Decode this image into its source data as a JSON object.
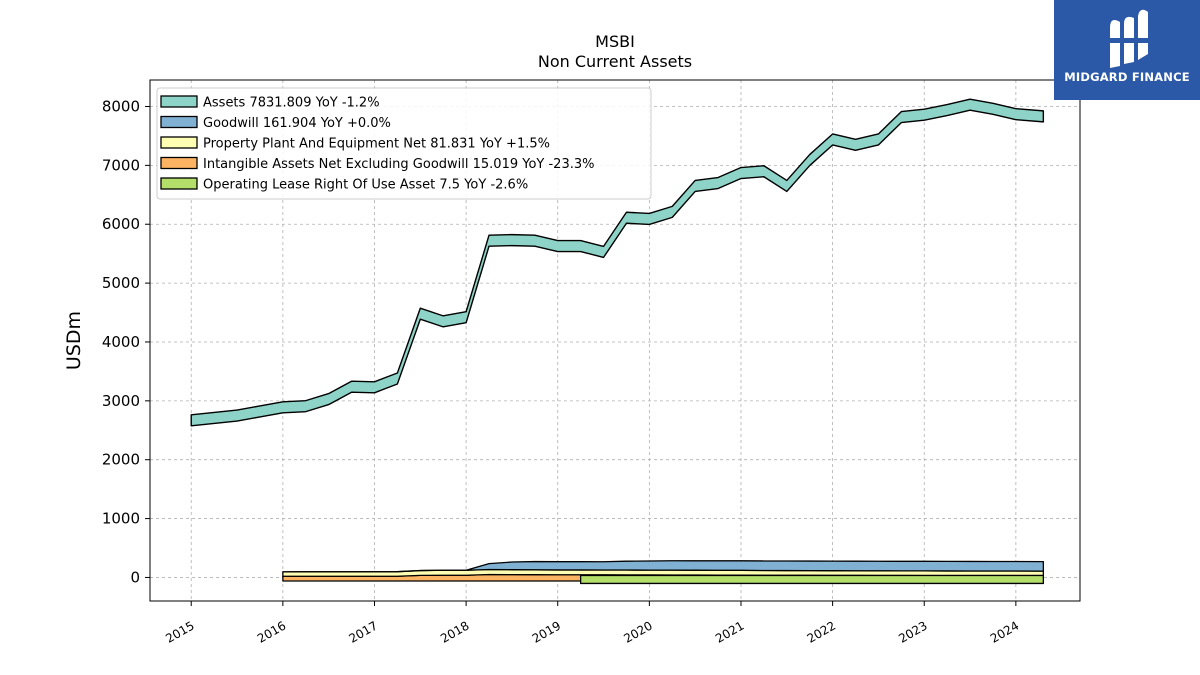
{
  "header": {
    "title": "MSBI",
    "subtitle": "Non Current  Assets"
  },
  "logo": {
    "text": "MIDGARD FINANCE",
    "icon": "midgard-m-icon",
    "color": "#2b59a8"
  },
  "chart_data": {
    "type": "area",
    "title": "MSBI",
    "subtitle": "Non Current  Assets",
    "xlabel": "",
    "ylabel": "USDm",
    "xlim": [
      2014.55,
      2024.7
    ],
    "ylim": [
      -400,
      8450
    ],
    "yticks": [
      0,
      1000,
      2000,
      3000,
      4000,
      5000,
      6000,
      7000,
      8000
    ],
    "xticks": [
      "2015",
      "2016",
      "2017",
      "2018",
      "2019",
      "2020",
      "2021",
      "2022",
      "2023",
      "2024"
    ],
    "grid": true,
    "legend_position": "top-left",
    "series": [
      {
        "name": "Assets  7831.809 YoY -1.2%",
        "color": "#8dd3c7",
        "style": "band",
        "x": [
          2015.0,
          2015.25,
          2015.5,
          2015.75,
          2016.0,
          2016.25,
          2016.5,
          2016.75,
          2017.0,
          2017.25,
          2017.5,
          2017.75,
          2018.0,
          2018.25,
          2018.5,
          2018.75,
          2019.0,
          2019.25,
          2019.5,
          2019.75,
          2020.0,
          2020.25,
          2020.5,
          2020.75,
          2021.0,
          2021.25,
          2021.5,
          2021.75,
          2022.0,
          2022.25,
          2022.5,
          2022.75,
          2023.0,
          2023.25,
          2023.5,
          2023.75,
          2024.0,
          2024.3
        ],
        "values": [
          2670,
          2710,
          2750,
          2820,
          2890,
          2910,
          3030,
          3240,
          3230,
          3380,
          4480,
          4350,
          4420,
          5720,
          5730,
          5720,
          5630,
          5630,
          5530,
          6110,
          6090,
          6210,
          6650,
          6700,
          6870,
          6900,
          6650,
          7090,
          7440,
          7350,
          7440,
          7820,
          7860,
          7940,
          8030,
          7960,
          7870,
          7832
        ]
      },
      {
        "name": "Goodwill  161.904 YoY +0.0%",
        "color": "#80b1d3",
        "style": "stack",
        "x": [
          2016.0,
          2016.25,
          2016.5,
          2016.75,
          2017.0,
          2017.25,
          2017.5,
          2017.75,
          2018.0,
          2018.25,
          2018.5,
          2018.75,
          2019.0,
          2019.25,
          2019.5,
          2019.75,
          2020.0,
          2020.25,
          2020.5,
          2020.75,
          2021.0,
          2021.25,
          2021.5,
          2021.75,
          2022.0,
          2022.25,
          2022.5,
          2022.75,
          2023.0,
          2023.25,
          2023.5,
          2023.75,
          2024.0,
          2024.3
        ],
        "values": [
          0,
          0,
          0,
          0,
          0,
          0,
          0,
          0,
          0,
          100,
          130,
          140,
          140,
          140,
          140,
          150,
          155,
          160,
          160,
          161,
          162,
          162,
          162,
          162,
          162,
          162,
          162,
          162,
          162,
          162,
          162,
          162,
          162,
          162
        ]
      },
      {
        "name": "Property Plant And Equipment Net  81.831 YoY +1.5%",
        "color": "#ffffb3",
        "style": "stack",
        "x": [
          2016.0,
          2016.25,
          2016.5,
          2016.75,
          2017.0,
          2017.25,
          2017.5,
          2017.75,
          2018.0,
          2018.25,
          2018.5,
          2018.75,
          2019.0,
          2019.25,
          2019.5,
          2019.75,
          2020.0,
          2020.25,
          2020.5,
          2020.75,
          2021.0,
          2021.25,
          2021.5,
          2021.75,
          2022.0,
          2022.25,
          2022.5,
          2022.75,
          2023.0,
          2023.25,
          2023.5,
          2023.75,
          2024.0,
          2024.3
        ],
        "values": [
          75,
          76,
          76,
          76,
          77,
          78,
          82,
          84,
          85,
          85,
          84,
          83,
          82,
          82,
          82,
          82,
          82,
          82,
          82,
          82,
          82,
          80,
          80,
          80,
          80,
          80,
          80,
          80,
          81,
          81,
          81,
          81,
          82,
          82
        ]
      },
      {
        "name": "Intangible Assets Net Excluding Goodwill  15.019 YoY -23.3%",
        "color": "#fdb462",
        "style": "stack",
        "x": [
          2016.0,
          2016.25,
          2016.5,
          2016.75,
          2017.0,
          2017.25,
          2017.5,
          2017.75,
          2018.0,
          2018.25,
          2018.5,
          2018.75,
          2019.0,
          2019.25,
          2019.5,
          2019.75,
          2020.0,
          2020.25,
          2020.5,
          2020.75,
          2021.0,
          2021.25,
          2021.5,
          2021.75,
          2022.0,
          2022.25,
          2022.5,
          2022.75,
          2023.0,
          2023.25,
          2023.5,
          2023.75,
          2024.0,
          2024.3
        ],
        "values": [
          10,
          10,
          10,
          10,
          10,
          10,
          25,
          28,
          27,
          40,
          38,
          37,
          36,
          36,
          35,
          34,
          33,
          32,
          31,
          30,
          29,
          28,
          27,
          26,
          25,
          24,
          23,
          22,
          21,
          20,
          19,
          18,
          17,
          15
        ]
      },
      {
        "name": "Operating Lease Right Of Use Asset  7.5 YoY -2.6%",
        "color": "#b3de69",
        "style": "band",
        "x": [
          2019.25,
          2019.5,
          2019.75,
          2020.0,
          2020.25,
          2020.5,
          2020.75,
          2021.0,
          2021.25,
          2021.5,
          2021.75,
          2022.0,
          2022.25,
          2022.5,
          2022.75,
          2023.0,
          2023.25,
          2023.5,
          2023.75,
          2024.0,
          2024.3
        ],
        "values": [
          9,
          9,
          9,
          9,
          9,
          9,
          8.5,
          8.5,
          8.5,
          8.5,
          8.3,
          8.2,
          8,
          8,
          7.9,
          7.8,
          7.7,
          7.7,
          7.6,
          7.6,
          7.5
        ]
      }
    ]
  }
}
